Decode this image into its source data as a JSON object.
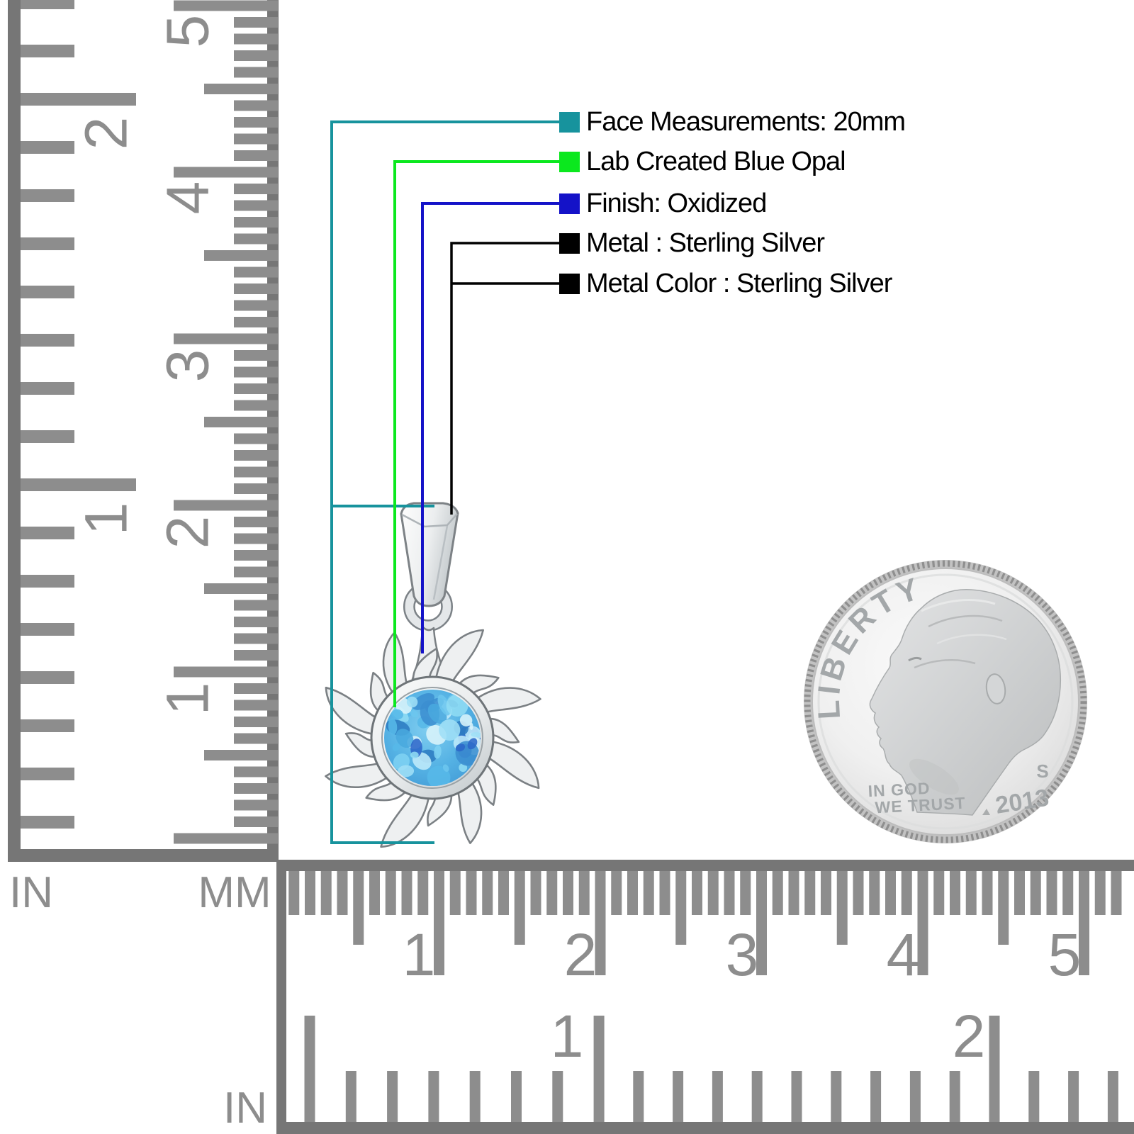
{
  "callouts": [
    {
      "color": "#17939d",
      "label": "Face Measurements: 20mm"
    },
    {
      "color": "#0be81e",
      "label": "Lab Created Blue Opal"
    },
    {
      "color": "#1412c8",
      "label": "Finish: Oxidized"
    },
    {
      "color": "#000000",
      "label": "Metal : Sterling Silver"
    },
    {
      "color": "#000000",
      "label": "Metal Color : Sterling Silver"
    }
  ],
  "rulers": {
    "left": {
      "in_unit": "IN",
      "mm_unit": "MM",
      "in_labels": [
        "2",
        "1"
      ],
      "mm_labels": [
        "5",
        "4",
        "3",
        "2",
        "1"
      ]
    },
    "bottom": {
      "in_unit": "IN",
      "mm_labels": [
        "1",
        "2",
        "3",
        "4",
        "5"
      ],
      "in_labels": [
        "1",
        "2"
      ]
    }
  },
  "coin": {
    "legend": "LIBERTY",
    "motto_line1": "IN GOD",
    "motto_line2": "WE TRUST",
    "year": "2013",
    "mint_mark": "S"
  }
}
